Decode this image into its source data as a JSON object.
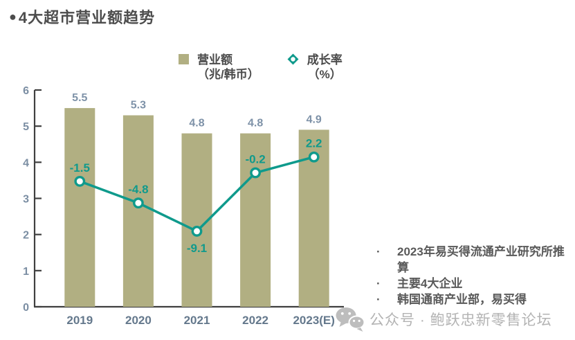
{
  "page": {
    "title_bullet": "●",
    "title": "4大超市营业额趋势"
  },
  "legend": {
    "revenue": {
      "label": "营业额",
      "sublabel": "（兆/韩币）"
    },
    "growth": {
      "label": "成长率",
      "sublabel": "（%）"
    }
  },
  "chart_data": {
    "type": "bar+line combo",
    "categories": [
      "2019",
      "2020",
      "2021",
      "2022",
      "2023(E)"
    ],
    "series": [
      {
        "name": "营业额（兆/韩币）",
        "type": "bar",
        "values": [
          5.5,
          5.3,
          4.8,
          4.8,
          4.9
        ],
        "color": "#b1af82"
      },
      {
        "name": "成长率（%）",
        "type": "line",
        "values": [
          -1.5,
          -4.8,
          -9.1,
          -0.2,
          2.2
        ],
        "color": "#0f9a8c",
        "label_below": [
          false,
          false,
          true,
          false,
          false
        ]
      }
    ],
    "title": "4大超市营业额趋势",
    "xlabel": "",
    "ylabel": "",
    "ylim": [
      0,
      6
    ],
    "y_ticks": [
      0,
      1,
      2,
      3,
      4,
      5,
      6
    ],
    "y2lim": [
      -20.6,
      12.4
    ],
    "grid": false,
    "legend_position": "top"
  },
  "notes": {
    "bullet": "·",
    "items": [
      "2023年易买得流通产业研究所推算",
      "主要4大企业",
      "韩国通商产业部，易买得"
    ]
  },
  "watermark": {
    "text": "公众号 · 鲍跃忠新零售论坛"
  },
  "colors": {
    "bar": "#b1af82",
    "line": "#0f9a8c",
    "bar_label": "#7e92a8",
    "axis_tick_label": "#7b8ea3",
    "x_label": "#64788c",
    "title": "#4d4d4d",
    "note_text": "#595959",
    "watermark": "#b3b3b3"
  }
}
